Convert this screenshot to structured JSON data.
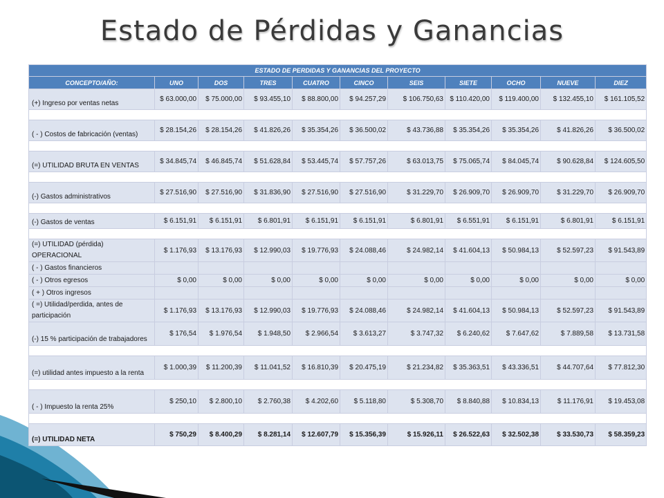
{
  "slide": {
    "title": "Estado de Pérdidas y Ganancias"
  },
  "table": {
    "title": "ESTADO DE PERDIDAS Y GANANCIAS DEL PROYECTO",
    "headers": [
      "CONCEPTO/AÑO:",
      "UNO",
      "DOS",
      "TRES",
      "CUATRO",
      "CINCO",
      "SEIS",
      "SIETE",
      "OCHO",
      "NUEVE",
      "DIEZ"
    ],
    "rows": [
      {
        "label": "(+) Ingreso  por  ventas netas",
        "values": [
          "$ 63.000,00",
          "$ 75.000,00",
          "$ 93.455,10",
          "$ 88.800,00",
          "$ 94.257,29",
          "$ 106.750,63",
          "$ 110.420,00",
          "$ 119.400,00",
          "$ 132.455,10",
          "$ 161.105,52"
        ]
      },
      {
        "label": "( - ) Costos de fabricación (ventas)",
        "values": [
          "$ 28.154,26",
          "$ 28.154,26",
          "$ 41.826,26",
          "$ 35.354,26",
          "$ 36.500,02",
          "$ 43.736,88",
          "$ 35.354,26",
          "$ 35.354,26",
          "$ 41.826,26",
          "$ 36.500,02"
        ]
      },
      {
        "label": "(=) UTILIDAD BRUTA EN VENTAS",
        "values": [
          "$ 34.845,74",
          "$ 46.845,74",
          "$ 51.628,84",
          "$ 53.445,74",
          "$ 57.757,26",
          "$ 63.013,75",
          "$ 75.065,74",
          "$ 84.045,74",
          "$ 90.628,84",
          "$ 124.605,50"
        ]
      },
      {
        "label": "(-) Gastos administrativos",
        "values": [
          "$ 27.516,90",
          "$ 27.516,90",
          "$ 31.836,90",
          "$ 27.516,90",
          "$ 27.516,90",
          "$ 31.229,70",
          "$ 26.909,70",
          "$ 26.909,70",
          "$ 31.229,70",
          "$ 26.909,70"
        ]
      },
      {
        "label": "(-) Gastos de ventas",
        "values": [
          "$ 6.151,91",
          "$ 6.151,91",
          "$ 6.801,91",
          "$ 6.151,91",
          "$ 6.151,91",
          "$ 6.801,91",
          "$ 6.551,91",
          "$ 6.151,91",
          "$ 6.801,91",
          "$ 6.151,91"
        ]
      },
      {
        "label": "(=) UTILIDAD (pérdida) OPERACIONAL",
        "values": [
          "$ 1.176,93",
          "$ 13.176,93",
          "$ 12.990,03",
          "$ 19.776,93",
          "$ 24.088,46",
          "$ 24.982,14",
          "$ 41.604,13",
          "$ 50.984,13",
          "$ 52.597,23",
          "$ 91.543,89"
        ]
      },
      {
        "label": "( - ) Gastos financieros",
        "values": [
          "",
          "",
          "",
          "",
          "",
          "",
          "",
          "",
          "",
          ""
        ]
      },
      {
        "label": "( - ) Otros egresos",
        "values": [
          "$ 0,00",
          "$ 0,00",
          "$ 0,00",
          "$ 0,00",
          "$ 0,00",
          "$ 0,00",
          "$ 0,00",
          "$ 0,00",
          "$ 0,00",
          "$ 0,00"
        ]
      },
      {
        "label": "( + ) Otros ingresos",
        "values": [
          "",
          "",
          "",
          "",
          "",
          "",
          "",
          "",
          "",
          ""
        ]
      },
      {
        "label": "( =)  Utilidad/perdida, antes de participación",
        "values": [
          "$ 1.176,93",
          "$ 13.176,93",
          "$ 12.990,03",
          "$ 19.776,93",
          "$ 24.088,46",
          "$ 24.982,14",
          "$ 41.604,13",
          "$ 50.984,13",
          "$ 52.597,23",
          "$ 91.543,89"
        ]
      },
      {
        "label": "(-) 15 % participación de trabajadores",
        "values": [
          "$ 176,54",
          "$ 1.976,54",
          "$ 1.948,50",
          "$ 2.966,54",
          "$ 3.613,27",
          "$ 3.747,32",
          "$ 6.240,62",
          "$ 7.647,62",
          "$ 7.889,58",
          "$ 13.731,58"
        ]
      },
      {
        "label": "(=) utilidad antes impuesto a la renta",
        "values": [
          "$ 1.000,39",
          "$ 11.200,39",
          "$ 11.041,52",
          "$ 16.810,39",
          "$ 20.475,19",
          "$ 21.234,82",
          "$ 35.363,51",
          "$ 43.336,51",
          "$ 44.707,64",
          "$ 77.812,30"
        ]
      },
      {
        "label": "( - ) Impuesto  la renta  25%",
        "values": [
          "$ 250,10",
          "$ 2.800,10",
          "$ 2.760,38",
          "$ 4.202,60",
          "$ 5.118,80",
          "$ 5.308,70",
          "$ 8.840,88",
          "$ 10.834,13",
          "$ 11.176,91",
          "$ 19.453,08"
        ]
      },
      {
        "label": "(=) UTILIDAD NETA",
        "values": [
          "$ 750,29",
          "$ 8.400,29",
          "$ 8.281,14",
          "$ 12.607,79",
          "$ 15.356,39",
          "$ 15.926,11",
          "$ 26.522,63",
          "$ 32.502,38",
          "$ 33.530,73",
          "$ 58.359,23"
        ]
      }
    ]
  }
}
